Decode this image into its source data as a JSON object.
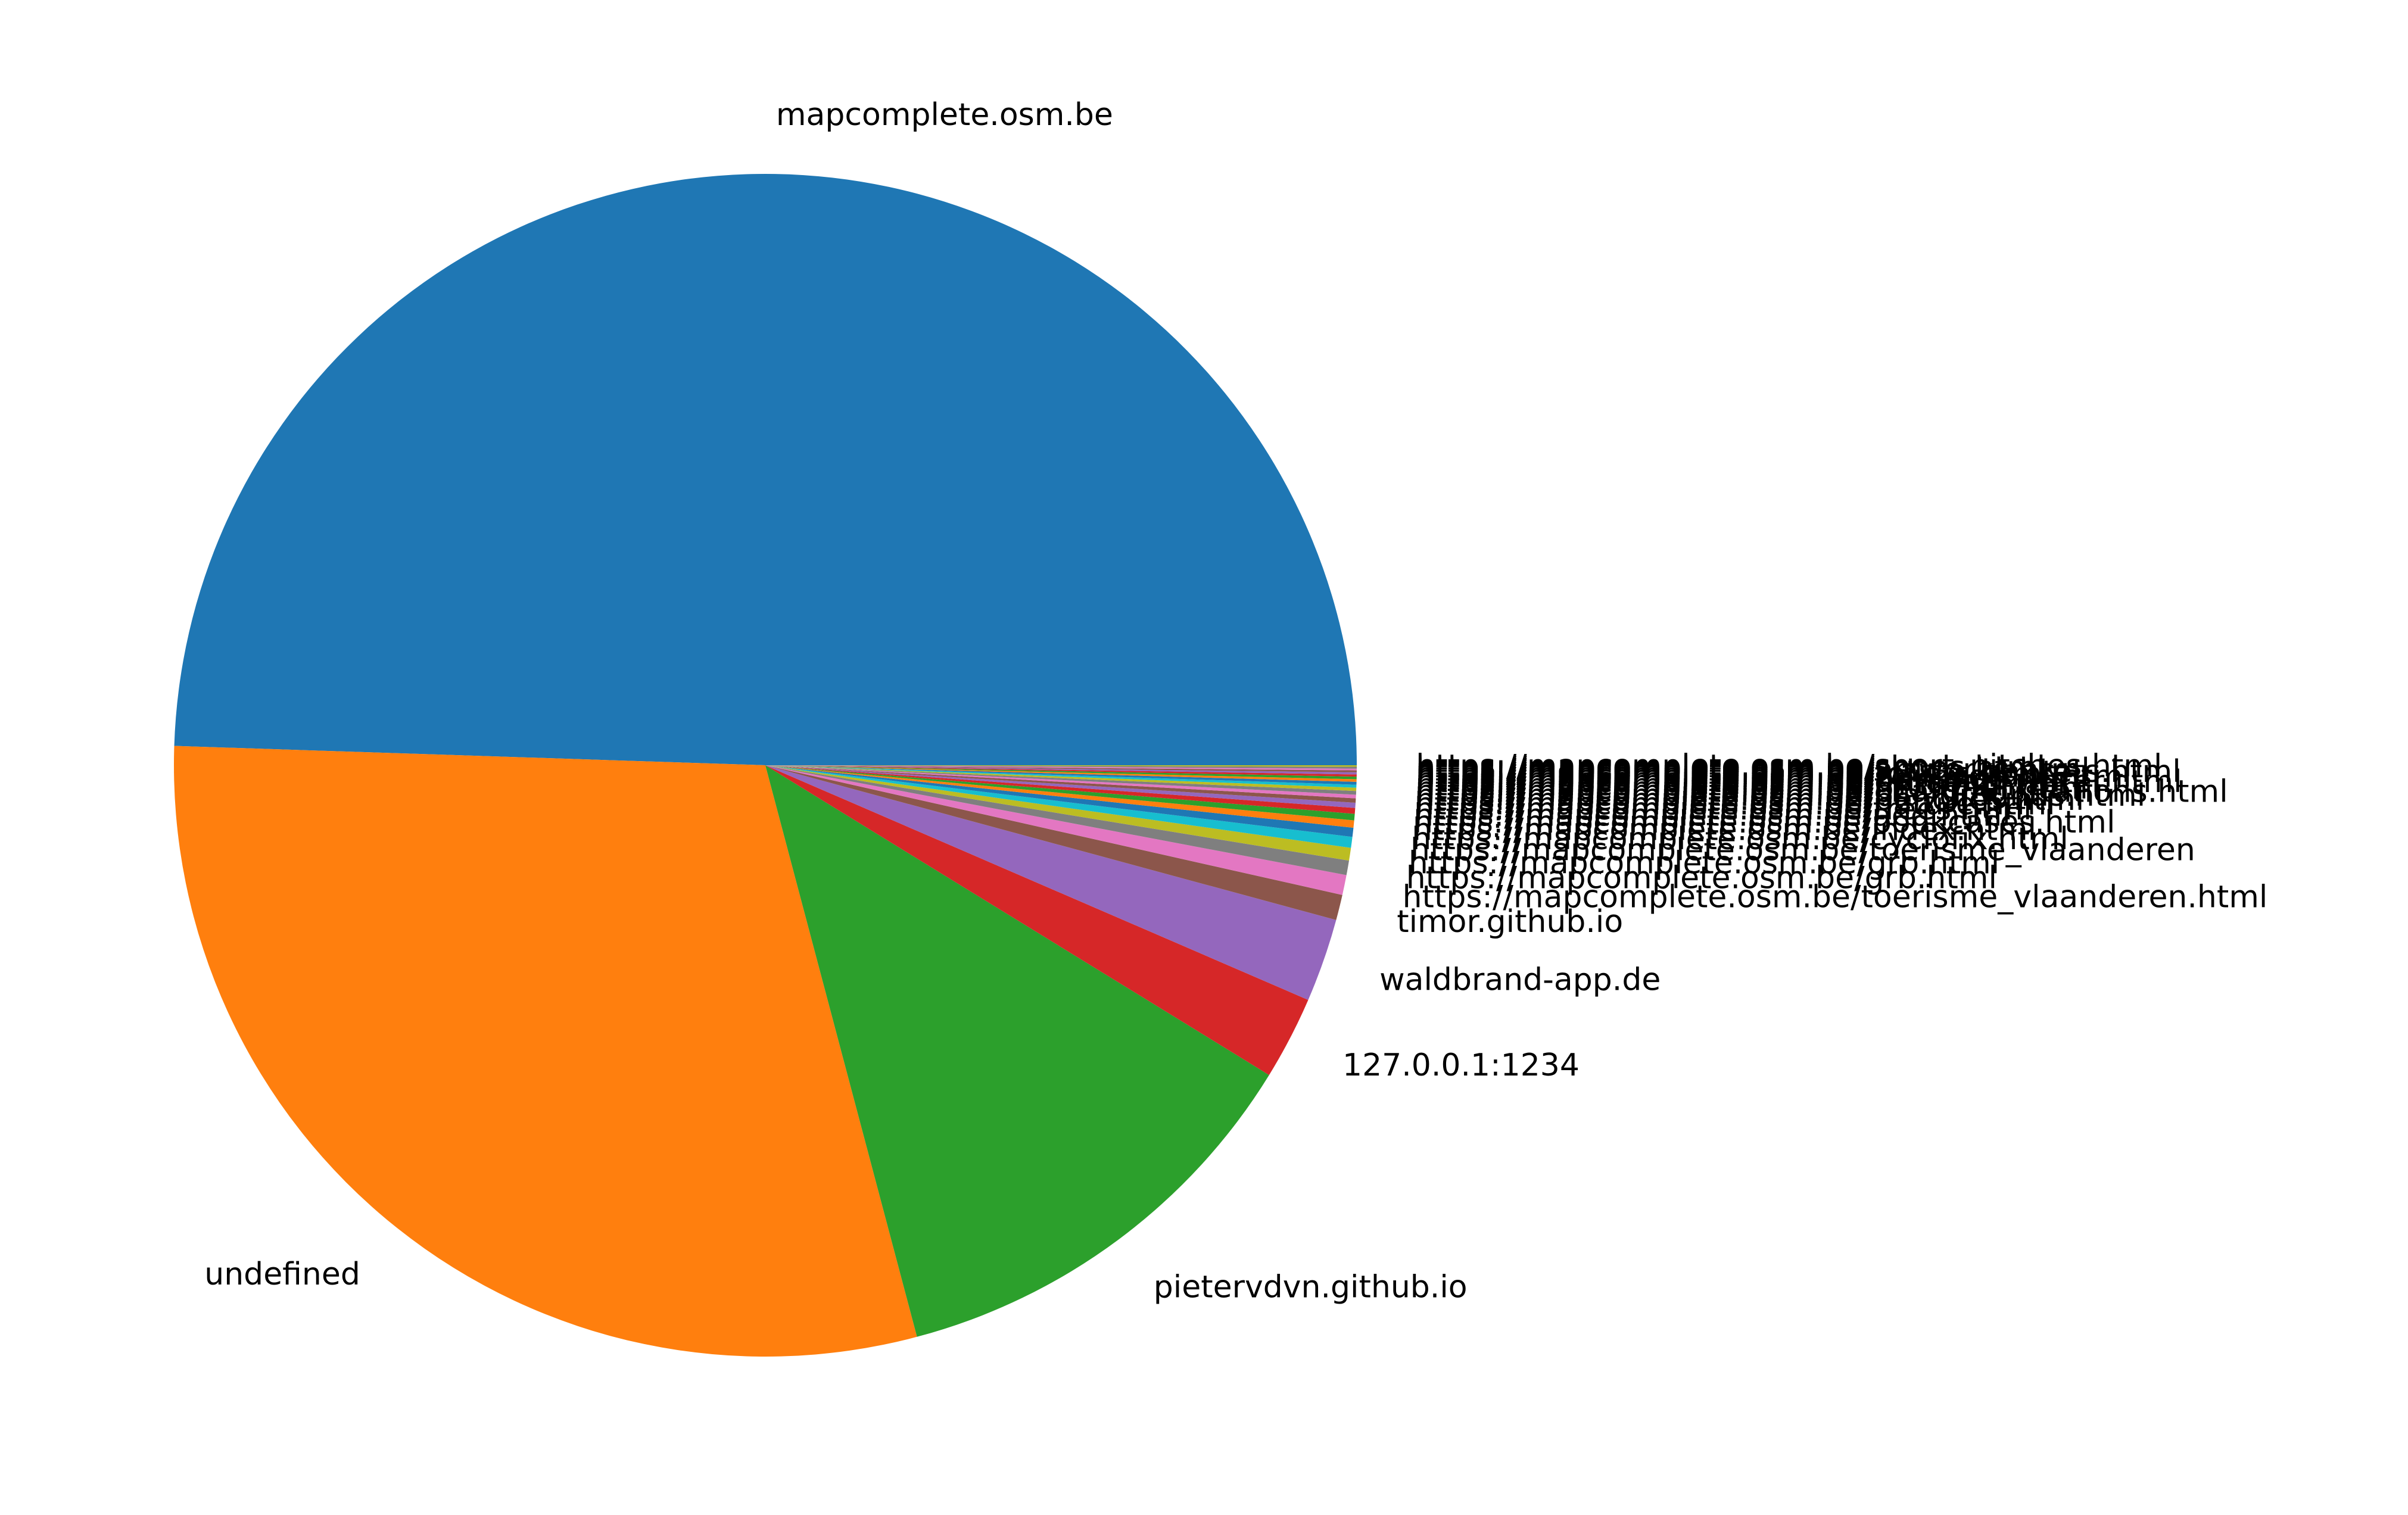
{
  "chart_data": {
    "type": "pie",
    "title": "",
    "start_angle_deg": 0,
    "direction": "counterclockwise",
    "slices": [
      {
        "label": "mapcomplete.osm.be",
        "value": 49.9,
        "color": "#1f77b4"
      },
      {
        "label": "undefined",
        "value": 29.9,
        "color": "#ff7f0e"
      },
      {
        "label": "pietervdvn.github.io",
        "value": 12.2,
        "color": "#2ca02c"
      },
      {
        "label": "127.0.0.1:1234",
        "value": 2.3,
        "color": "#d62728"
      },
      {
        "label": "waldbrand-app.de",
        "value": 2.3,
        "color": "#9467bd"
      },
      {
        "label": "timor.github.io",
        "value": 0.7,
        "color": "#8c564b"
      },
      {
        "label": "https://mapcomplete.osm.be/toerisme_vlaanderen.html",
        "value": 0.55,
        "color": "#e377c2"
      },
      {
        "label": "https://mapcomplete.osm.be/grb.html",
        "value": 0.4,
        "color": "#7f7f7f"
      },
      {
        "label": "https://mapcomplete.osm.be/grb.html",
        "value": 0.35,
        "color": "#bcbd22"
      },
      {
        "label": "https://mapcomplete.osm.be/toerisme_vlaanderen",
        "value": 0.3,
        "color": "#17becf"
      },
      {
        "label": "https://mapcomplete.osm.be/cyclofix.html",
        "value": 0.25,
        "color": "#1f77b4"
      },
      {
        "label": "https://mapcomplete.osm.be/index.html",
        "value": 0.2,
        "color": "#ff7f0e"
      },
      {
        "label": "https://mapcomplete.osm.be/bookcases.html",
        "value": 0.18,
        "color": "#2ca02c"
      },
      {
        "label": "https://mapcomplete.osm.be/aed.html",
        "value": 0.16,
        "color": "#d62728"
      },
      {
        "label": "https://mapcomplete.osm.be/trees.html",
        "value": 0.14,
        "color": "#9467bd"
      },
      {
        "label": "https://mapcomplete.osm.be/nature.html",
        "value": 0.12,
        "color": "#8c564b"
      },
      {
        "label": "https://mapcomplete.osm.be/benches.html",
        "value": 0.1,
        "color": "#e377c2"
      },
      {
        "label": "https://mapcomplete.osm.be/playgrounds.html",
        "value": 0.1,
        "color": "#7f7f7f"
      },
      {
        "label": "https://mapcomplete.osm.be/charging_stations.html",
        "value": 0.09,
        "color": "#bcbd22"
      },
      {
        "label": "https://mapcomplete.osm.be/personal.html",
        "value": 0.08,
        "color": "#17becf"
      },
      {
        "label": "https://mapcomplete.osm.be/fritures.html",
        "value": 0.08,
        "color": "#1f77b4"
      },
      {
        "label": "https://mapcomplete.osm.be/drinking_water.html",
        "value": 0.07,
        "color": "#ff7f0e"
      },
      {
        "label": "https://mapcomplete.osm.be/parkings.html",
        "value": 0.07,
        "color": "#2ca02c"
      },
      {
        "label": "https://mapcomplete.osm.be/hailhydrant.html",
        "value": 0.06,
        "color": "#d62728"
      },
      {
        "label": "https://mapcomplete.osm.be/toilets.html",
        "value": 0.06,
        "color": "#9467bd"
      },
      {
        "label": "https://mapcomplete.osm.be/waste_baskets.html",
        "value": 0.05,
        "color": "#8c564b"
      },
      {
        "label": "https://mapcomplete.osm.be/artworks.html",
        "value": 0.05,
        "color": "#e377c2"
      },
      {
        "label": "https://mapcomplete.osm.be/shops.html",
        "value": 0.05,
        "color": "#7f7f7f"
      },
      {
        "label": "https://mapcomplete.osm.be/sport_pitches.html",
        "value": 0.04,
        "color": "#bcbd22"
      }
    ]
  }
}
